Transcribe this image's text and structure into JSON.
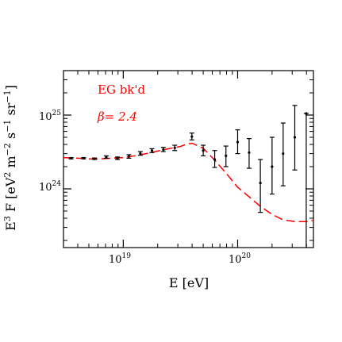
{
  "chart_data": {
    "type": "scatter",
    "xscale": "log",
    "yscale": "log",
    "xlim": [
      3e+18,
      4.6e+20
    ],
    "ylim": [
      1.6e+23,
      4e+25
    ],
    "xlabel": {
      "text": "E  [eV]"
    },
    "ylabel": {
      "parts": [
        {
          "t": "E",
          "sup": false
        },
        {
          "t": "3",
          "sup": true
        },
        {
          "t": " F  [eV",
          "sup": false
        },
        {
          "t": "2",
          "sup": true
        },
        {
          "t": " m",
          "sup": false
        },
        {
          "t": "−2",
          "sup": true
        },
        {
          "t": " s",
          "sup": false
        },
        {
          "t": "−1",
          "sup": true
        },
        {
          "t": " sr",
          "sup": false
        },
        {
          "t": "−1",
          "sup": true
        },
        {
          "t": "]",
          "sup": false
        }
      ]
    },
    "x_ticks": [
      {
        "value": 1e+19,
        "base": "10",
        "exp": "19"
      },
      {
        "value": 1e+20,
        "base": "10",
        "exp": "20"
      }
    ],
    "y_ticks": [
      {
        "value": 1e+24,
        "base": "10",
        "exp": "24"
      },
      {
        "value": 1e+25,
        "base": "10",
        "exp": "25"
      }
    ],
    "annotations": [
      {
        "text": "EG bk'd",
        "color": "#ff0000"
      },
      {
        "text": "β= 2.4",
        "color": "#ff0000"
      }
    ],
    "series": [
      {
        "kind": "points",
        "color": "#000000",
        "points": [
          {
            "x": 3.5e+18,
            "y": 2.6e+24,
            "ylo": 2.55e+24,
            "yhi": 2.65e+24
          },
          {
            "x": 4.5e+18,
            "y": 2.6e+24,
            "ylo": 2.55e+24,
            "yhi": 2.65e+24
          },
          {
            "x": 5.6e+18,
            "y": 2.55e+24,
            "ylo": 2.5e+24,
            "yhi": 2.62e+24
          },
          {
            "x": 7.1e+18,
            "y": 2.7e+24,
            "ylo": 2.6e+24,
            "yhi": 2.8e+24
          },
          {
            "x": 8.9e+18,
            "y": 2.6e+24,
            "ylo": 2.5e+24,
            "yhi": 2.7e+24
          },
          {
            "x": 1.12e+19,
            "y": 2.75e+24,
            "ylo": 2.6e+24,
            "yhi": 2.9e+24
          },
          {
            "x": 1.41e+19,
            "y": 3e+24,
            "ylo": 2.85e+24,
            "yhi": 3.2e+24
          },
          {
            "x": 1.78e+19,
            "y": 3.3e+24,
            "ylo": 3.1e+24,
            "yhi": 3.5e+24
          },
          {
            "x": 2.24e+19,
            "y": 3.4e+24,
            "ylo": 3.2e+24,
            "yhi": 3.65e+24
          },
          {
            "x": 2.82e+19,
            "y": 3.6e+24,
            "ylo": 3.3e+24,
            "yhi": 3.9e+24
          },
          {
            "x": 3.98e+19,
            "y": 5.1e+24,
            "ylo": 4.6e+24,
            "yhi": 5.7e+24
          },
          {
            "x": 5e+19,
            "y": 3.3e+24,
            "ylo": 2.8e+24,
            "yhi": 3.9e+24
          },
          {
            "x": 6.3e+19,
            "y": 2.5e+24,
            "ylo": 1.95e+24,
            "yhi": 3.3e+24
          },
          {
            "x": 7.9e+19,
            "y": 2.8e+24,
            "ylo": 2e+24,
            "yhi": 3.8e+24
          },
          {
            "x": 1e+20,
            "y": 4.3e+24,
            "ylo": 3e+24,
            "yhi": 6.3e+24
          },
          {
            "x": 1.26e+20,
            "y": 3.1e+24,
            "ylo": 1.9e+24,
            "yhi": 4.8e+24
          },
          {
            "x": 1.58e+20,
            "y": 1.2e+24,
            "ylo": 4.8e+23,
            "yhi": 2.5e+24
          },
          {
            "x": 2e+20,
            "y": 2e+24,
            "ylo": 8.5e+23,
            "yhi": 5e+24
          },
          {
            "x": 2.5e+20,
            "y": 3e+24,
            "ylo": 1.1e+24,
            "yhi": 7.8e+24
          },
          {
            "x": 3.16e+20,
            "y": 5e+24,
            "ylo": 1.8e+24,
            "yhi": 1.35e+25
          },
          {
            "x": 3.98e+20,
            "y": 1.05e+25,
            "ylo": 1.6e+23,
            "yhi": 1.05e+25
          }
        ]
      },
      {
        "kind": "dashed-line",
        "color": "#ff0000",
        "points": [
          [
            3e+18,
            2.65e+24
          ],
          [
            4e+18,
            2.6e+24
          ],
          [
            5e+18,
            2.55e+24
          ],
          [
            6.3e+18,
            2.55e+24
          ],
          [
            8e+18,
            2.6e+24
          ],
          [
            1e+19,
            2.65e+24
          ],
          [
            1.26e+19,
            2.8e+24
          ],
          [
            1.58e+19,
            3e+24
          ],
          [
            2e+19,
            3.25e+24
          ],
          [
            2.5e+19,
            3.5e+24
          ],
          [
            3.16e+19,
            3.75e+24
          ],
          [
            3.5e+19,
            4e+24
          ],
          [
            4e+19,
            4.15e+24
          ],
          [
            5e+19,
            3.55e+24
          ],
          [
            6.3e+19,
            2.45e+24
          ],
          [
            8e+19,
            1.6e+24
          ],
          [
            1e+20,
            1.05e+24
          ],
          [
            1.26e+20,
            7.8e+23
          ],
          [
            1.58e+20,
            5.8e+23
          ],
          [
            2e+20,
            4.5e+23
          ],
          [
            2.5e+20,
            3.8e+23
          ],
          [
            3.16e+20,
            3.6e+23
          ],
          [
            4e+20,
            3.6e+23
          ],
          [
            4.6e+20,
            3.75e+23
          ]
        ]
      }
    ]
  }
}
